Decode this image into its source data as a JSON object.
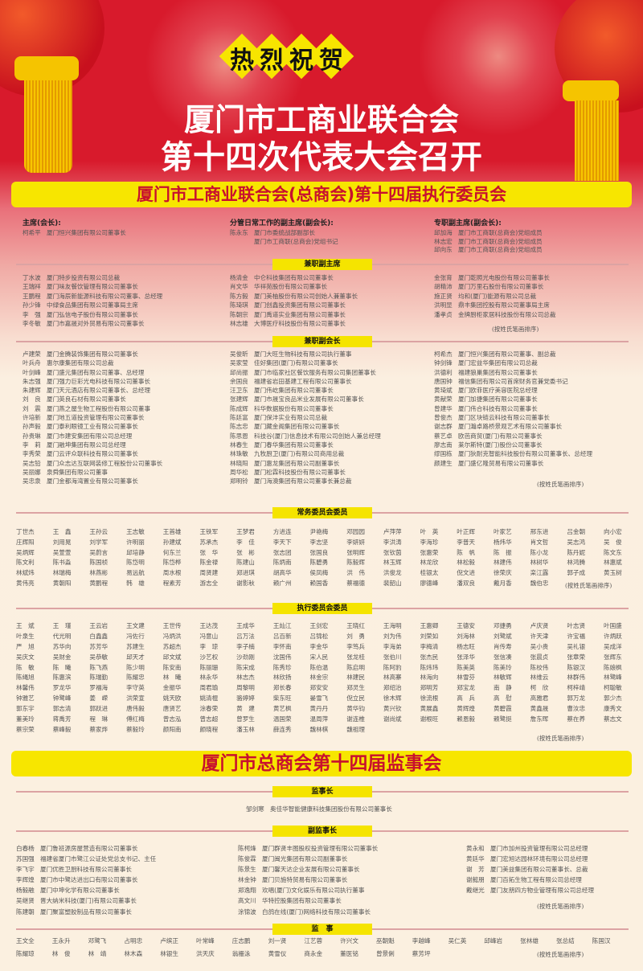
{
  "header": {
    "greeting": [
      "热",
      "烈",
      "祝",
      "贺"
    ],
    "title_line1": "厦门市工商业联合会",
    "title_line2": "第十四次代表大会召开",
    "colors": {
      "red": "#d81a2c",
      "yellow": "#f7e600"
    }
  },
  "exec_banner": "厦门市工商业联合会(总商会)第十四届执行委员会",
  "leaders": [
    {
      "label": "主席(会长):",
      "entries": [
        {
          "name": "柯希平",
          "title": "厦门恒兴集团有限公司董事长"
        }
      ]
    },
    {
      "label": "分管日常工作的副主席(副会长):",
      "entries": [
        {
          "name": "陈永东",
          "title": "厦门市委统战部副部长"
        },
        {
          "name": "",
          "title": "厦门市工商联(总商会)党组书记"
        }
      ]
    },
    {
      "label": "专职副主席(副会长):",
      "entries": [
        {
          "name": "邱加海",
          "title": "厦门市工商联(总商会)党组成员"
        },
        {
          "name": "林志宏",
          "title": "厦门市工商联(总商会)党组成员"
        },
        {
          "name": "邱向东",
          "title": "厦门市工商联(总商会)党组成员"
        }
      ]
    }
  ],
  "vice_chairs": {
    "label": "兼职副主席",
    "columns": [
      [
        {
          "name": "丁水波",
          "title": "厦门特步投资有限公司总裁"
        },
        {
          "name": "王瑞祥",
          "title": "厦门味友餐饮管理有限公司董事长"
        },
        {
          "name": "王鹏程",
          "title": "厦门海辰新能源科技有限公司董事、总经理"
        },
        {
          "name": "孙少锋",
          "title": "中绿食品集团有限公司董事局主席"
        },
        {
          "name": "李　强",
          "title": "厦门弘信电子股份有限公司董事长"
        },
        {
          "name": "李冬敏",
          "title": "厦门市嘉晟对外贸易有限公司董事长"
        }
      ],
      [
        {
          "name": "杨清金",
          "title": "中仑科技集团有限公司董事长"
        },
        {
          "name": "肖文华",
          "title": "华祥苑股份有限公司董事长"
        },
        {
          "name": "陈方毅",
          "title": "厦门美柚股份有限公司创始人兼董事长"
        },
        {
          "name": "陈琦琪",
          "title": "厦门创鑫投资集团有限公司董事长"
        },
        {
          "name": "陈朝宗",
          "title": "厦门禹道实业集团有限公司董事长"
        },
        {
          "name": "林志雄",
          "title": "大博医疗科技股份有限公司董事长"
        }
      ],
      [
        {
          "name": "金张育",
          "title": "厦门乾照光电股份有限公司董事长"
        },
        {
          "name": "胡精沛",
          "title": "厦门万里石股份有限公司董事长"
        },
        {
          "name": "施正贤",
          "title": "均和(厦门)能源有限公司总裁"
        },
        {
          "name": "洪明显",
          "title": "鼎丰集团控股有限公司董事局主席"
        },
        {
          "name": "潘孝贞",
          "title": "金牌厨柜家居科技股份有限公司总裁"
        }
      ]
    ],
    "note": "(按姓氏笔画排序)"
  },
  "vice_presidents": {
    "label": "兼职副会长",
    "columns": [
      [
        {
          "name": "卢建荣",
          "title": "厦门金腾装饰集团有限公司董事长"
        },
        {
          "name": "叶兵舟",
          "title": "惠尔康集团有限公司总裁"
        },
        {
          "name": "叶剑峰",
          "title": "厦门盛元集团有限公司董事、总经理"
        },
        {
          "name": "朱志强",
          "title": "厦门强力巨彩光电科技有限公司董事长"
        },
        {
          "name": "朱建辉",
          "title": "厦门天元酒店有限公司董事长、总经理"
        },
        {
          "name": "刘　良",
          "title": "厦门英良石材有限公司董事长"
        },
        {
          "name": "刘　震",
          "title": "厦门燕之屋生物工程股份有限公司董事"
        },
        {
          "name": "许培新",
          "title": "厦门地五道投资管理有限公司董事长"
        },
        {
          "name": "孙声毅",
          "title": "厦门泰利眼镜工业有限公司董事长"
        },
        {
          "name": "孙贵琳",
          "title": "厦门市建安集团有限公司总经理"
        },
        {
          "name": "李　莉",
          "title": "厦门融坤集团有限公司总经理"
        },
        {
          "name": "李秀荣",
          "title": "厦门云评众联科技有限公司董事长"
        },
        {
          "name": "吴志铅",
          "title": "厦门众志达互联网装修工程股份公司董事长"
        },
        {
          "name": "吴丽娜",
          "title": "泉舜集团有限公司董事"
        },
        {
          "name": "吴忠泉",
          "title": "厦门金都海湾置业有限公司董事长"
        }
      ],
      [
        {
          "name": "吴俊昕",
          "title": "厦门大旺生物科技有限公司执行董事"
        },
        {
          "name": "吴家莹",
          "title": "佳好集团(厦门)有限公司董事长"
        },
        {
          "name": "邱尚振",
          "title": "厦门市临家社区餐饮服务有限公司集团董事长"
        },
        {
          "name": "余国良",
          "title": "福建省岩田基建工程有限公司董事长"
        },
        {
          "name": "汪卫东",
          "title": "厦门伟屹集团有限公司董事长"
        },
        {
          "name": "张建辉",
          "title": "厦门市晟宝良品米业发展有限公司董事长"
        },
        {
          "name": "陈成辉",
          "title": "科华数据股份有限公司董事长"
        },
        {
          "name": "陈廷富",
          "title": "厦门保沣实业有限公司总裁"
        },
        {
          "name": "陈志忠",
          "title": "厦门藏金阁集团有限公司董事长"
        },
        {
          "name": "陈思恩",
          "title": "科技谷(厦门)信息技术有限公司创始人兼总经理"
        },
        {
          "name": "林春生",
          "title": "厦门春华集团有限公司董事长"
        },
        {
          "name": "林珠敏",
          "title": "九牧厨卫(厦门)有限公司商用总裁"
        },
        {
          "name": "林晓阳",
          "title": "厦门惠龙集团有限公司副董事长"
        },
        {
          "name": "周华松",
          "title": "厦门松霖科技股份有限公司董事长"
        },
        {
          "name": "郑明铃",
          "title": "厦门海澳集团有限公司董事长兼总裁"
        }
      ],
      [
        {
          "name": "柯希杰",
          "title": "厦门恒兴集团有限公司董事、副总裁"
        },
        {
          "name": "钟剑锋",
          "title": "厦门宏益华集团有限公司总裁"
        },
        {
          "name": "洪德利",
          "title": "福建狼巢集团有限公司董事长"
        },
        {
          "name": "唐国钟",
          "title": "福信集团有限公司首席财务官兼党委书记"
        },
        {
          "name": "黄琦斌",
          "title": "厦门欧菲医疗美容医院总经理"
        },
        {
          "name": "黄献荣",
          "title": "厦门加捷集团有限公司董事长"
        },
        {
          "name": "曾建华",
          "title": "厦门伟合科技有限公司董事长"
        },
        {
          "name": "曾俊杰",
          "title": "厦门区块链云科技有限公司董事长"
        },
        {
          "name": "谢志群",
          "title": "厦门瀚卓路桥景观艺术有限公司董事长"
        },
        {
          "name": "蔡艺卓",
          "title": "欧芭商贸(厦门)有限公司董事长"
        },
        {
          "name": "廖志南",
          "title": "莱尔斯特(厦门)股份公司董事长"
        },
        {
          "name": "缪国栋",
          "title": "厦门狄耐克智能科技股份有限公司董事长、总经理"
        },
        {
          "name": "颜建生",
          "title": "厦门盛亿隆贸易有限公司董事长"
        }
      ]
    ],
    "note": "(按姓氏笔画排序)"
  },
  "standing_committee": {
    "label": "常务委员会委员",
    "names": [
      "丁世杰",
      "王　鑫",
      "王孙云",
      "王志敏",
      "王首雄",
      "王铁军",
      "王梦君",
      "方进连",
      "尹艳梅",
      "邓园园",
      "卢萍萍",
      "叶　英",
      "叶正辉",
      "叶家艺",
      "邢东进",
      "吕金朝",
      "向小宏",
      "庄辉阳",
      "刘用晃",
      "刘学军",
      "许明丽",
      "孙建斌",
      "苏承杰",
      "李　佳",
      "李天下",
      "李志坚",
      "李妍妍",
      "李洪涛",
      "李海珍",
      "李普天",
      "杨炜华",
      "肖文哲",
      "吴志鸿",
      "吴　俊",
      "吴炳辉",
      "吴萱萱",
      "吴蔚言",
      "邱培静",
      "何东兰",
      "张　华",
      "张　彬",
      "张志团",
      "张国良",
      "张明辉",
      "张钦茵",
      "张惠荣",
      "陈　帆",
      "陈　振",
      "陈小龙",
      "陈丹妮",
      "陈文东",
      "陈文利",
      "陈书淼",
      "陈国桢",
      "陈岱明",
      "陈岱桦",
      "陈金禄",
      "陈建山",
      "陈炳南",
      "陈碧勇",
      "陈毅辉",
      "林玉辉",
      "林龙欣",
      "林松毅",
      "林建伟",
      "林树华",
      "林鸿腾",
      "林惠斌",
      "林斌炜",
      "林瑞梅",
      "林燕彬",
      "易远航",
      "周水根",
      "周贤建",
      "郑进琪",
      "胡高华",
      "侯凤梅",
      "洪　伟",
      "洪俊龙",
      "桂银太",
      "倪文进",
      "徐荣庆",
      "栾江露",
      "郭子成",
      "黄玉树",
      "黄伟亮",
      "黄朝阳",
      "黄鹏程",
      "韩　雄",
      "程素芳",
      "游志全",
      "谢影秋",
      "赖广州",
      "赖国香",
      "蔡福德",
      "裴韶山",
      "廖德峰",
      "潘双良",
      "戴月香",
      "魏伯忠"
    ],
    "note": "(按姓氏笔画排序)"
  },
  "exec_committee": {
    "label": "执行委员会委员",
    "names": [
      "王　斌",
      "王　瑾",
      "王云岩",
      "王文建",
      "王世传",
      "王达茂",
      "王成华",
      "王灿江",
      "王剑宏",
      "王晓红",
      "王海明",
      "王惠卿",
      "王德安",
      "邓捷勇",
      "卢庆贤",
      "叶志贤",
      "叶国盛",
      "叶泉生",
      "代光明",
      "白鑫鑫",
      "冯佐行",
      "冯炳洪",
      "冯意山",
      "吕万法",
      "吕百新",
      "吕锦松",
      "刘　勇",
      "刘为伟",
      "刘荣如",
      "刘海林",
      "刘鹭斌",
      "许天津",
      "许宝福",
      "许炳跃",
      "严　旭",
      "苏华向",
      "苏芳华",
      "苏建生",
      "苏超杰",
      "李　琼",
      "李子楠",
      "李怀南",
      "李金华",
      "李笃兵",
      "李海弟",
      "李梅清",
      "杨志旺",
      "肖传寿",
      "吴小贵",
      "吴礼银",
      "吴成洋",
      "吴庆文",
      "吴财金",
      "吴恭敏",
      "邱天才",
      "邱文斌",
      "沙艺权",
      "沙劲刚",
      "沈国伟",
      "宋人民",
      "张龙桂",
      "张伯川",
      "张杰民",
      "张泽华",
      "张信凑",
      "张晨贞",
      "张章荣",
      "张辉东",
      "陈　敏",
      "陈　曦",
      "陈飞燕",
      "陈少明",
      "陈安南",
      "陈丽珊",
      "陈宋成",
      "陈秀珍",
      "陈伯温",
      "陈启明",
      "陈阿豹",
      "陈炜玮",
      "陈美英",
      "陈美玲",
      "陈校伟",
      "陈银汉",
      "陈娘枫",
      "陈绳旭",
      "陈惠滨",
      "陈瑞勤",
      "陈耀忠",
      "林　曦",
      "林永华",
      "林志杰",
      "林欣扬",
      "林金宗",
      "林建民",
      "林高寨",
      "林海向",
      "林雪芬",
      "林敏辉",
      "林维云",
      "林群伟",
      "林鹭峰",
      "林馨伟",
      "罗龙华",
      "罗福海",
      "李守英",
      "金振华",
      "周君瑜",
      "周黎明",
      "郑长春",
      "郑安安",
      "郑灵生",
      "郑绍治",
      "郑明芳",
      "郑宝龙",
      "南　静",
      "柯　欣",
      "柯梓靖",
      "柯聪敏",
      "钟雅艺",
      "钟鹭峰",
      "姜　嵘",
      "洪荣宣",
      "姚天欧",
      "姚清棍",
      "骆婷婷",
      "柴东旺",
      "晏雪飞",
      "倪立民",
      "徐木辉",
      "徐流根",
      "高　兵",
      "高　慰",
      "高雅君",
      "郭万龙",
      "郭少杰",
      "郭东宇",
      "郭志清",
      "郭跃进",
      "唐伟毅",
      "唐贤艺",
      "涂春荣",
      "黄　建",
      "黄艺枫",
      "黄丹丹",
      "黄华钧",
      "黄兴钦",
      "黄展鑫",
      "黄辉煌",
      "黄碧霞",
      "黄鑫晟",
      "曹汝忠",
      "康秀文",
      "董美玲",
      "蒋禹芳",
      "程　琳",
      "傅红梅",
      "曾志泓",
      "曾志超",
      "曾罗生",
      "温国荣",
      "温周萍",
      "谢连椎",
      "谢尚斌",
      "谢根旺",
      "赖恩毅",
      "赖鹭挺",
      "詹东晖",
      "蔡在养",
      "蔡志文",
      "蔡宗荣",
      "蔡峰毅",
      "蔡家烨",
      "蔡毅玲",
      "颜阳南",
      "颜晓程",
      "潘玉林",
      "薛连秀",
      "魏林棋",
      "魏祖理"
    ],
    "note": "(按姓氏笔画排序)"
  },
  "supervisory_banner": "厦门市总商会第十四届监事会",
  "chief_supervisor": {
    "label": "监事长",
    "name": "邹剑寒",
    "title": "奥佳华智能健康科技集团股份有限公司董事长"
  },
  "vice_supervisors": {
    "label": "副监事长",
    "columns": [
      [
        {
          "name": "白春杨",
          "title": "厦门鲁班源房屋营造有限公司董事长"
        },
        {
          "name": "苏国强",
          "title": "福建省厦门市鹭江公证处党总支书记、主任"
        },
        {
          "name": "李飞宇",
          "title": "厦门优胜卫厨科技有限公司董事长"
        },
        {
          "name": "李辉煌",
          "title": "厦门市中鹭达进出口有限公司董事长"
        },
        {
          "name": "杨毅融",
          "title": "厦门中坤化学有限公司董事长"
        },
        {
          "name": "吴继贤",
          "title": "晋大纳米科技(厦门)有限公司董事长"
        },
        {
          "name": "陈建朝",
          "title": "厦门聚富塑胶制品有限公司董事长"
        }
      ],
      [
        {
          "name": "陈柯烽",
          "title": "厦门群贤丰图股权投资管理有限公司董事长"
        },
        {
          "name": "陈俊霖",
          "title": "厦门闽光集团有限公司副董事长"
        },
        {
          "name": "陈景生",
          "title": "厦门馨天达企业发展有限公司董事长"
        },
        {
          "name": "林金钟",
          "title": "厦门贝施特贸易有限公司董事长"
        },
        {
          "name": "郑逸翔",
          "title": "欢唱(厦门)文化娱乐有限公司执行董事"
        },
        {
          "name": "高文川",
          "title": "华特控股集团有限公司董事长"
        },
        {
          "name": "涂锦波",
          "title": "白鸽在线(厦门)网络科技有限公司董事长"
        }
      ],
      [
        {
          "name": "黄永和",
          "title": "厦门市加州投资管理有限公司总经理"
        },
        {
          "name": "黄廷华",
          "title": "厦门宏旭达园林环境有限公司总经理"
        },
        {
          "name": "谢　芳",
          "title": "厦门美益集团有限公司董事长、总裁"
        },
        {
          "name": "谢懿朋",
          "title": "厦门百拓生物工程有限公司总经理"
        },
        {
          "name": "戴继光",
          "title": "厦门友朋四方物业管理有限公司总经理"
        }
      ]
    ],
    "note": "(按姓氏笔画排序)"
  },
  "supervisors": {
    "label": "监　事",
    "names": [
      "王文全",
      "王永升",
      "邓鹭飞",
      "占明忠",
      "卢缤正",
      "叶常峰",
      "庄志鹏",
      "刘一贤",
      "江艺蓉",
      "许兴文",
      "巫朝魁",
      "李越峰",
      "吴仁英",
      "邱峰岩",
      "张林雄",
      "张总结",
      "陈国汉",
      "陈耀琼",
      "林　俊",
      "林　靖",
      "林木森",
      "林银生",
      "洪天庆",
      "翁栅泳",
      "黄雪仪",
      "商永金",
      "董医铭",
      "曾景俐",
      "蔡芳坪"
    ],
    "note": "(按姓氏笔画排序)"
  }
}
